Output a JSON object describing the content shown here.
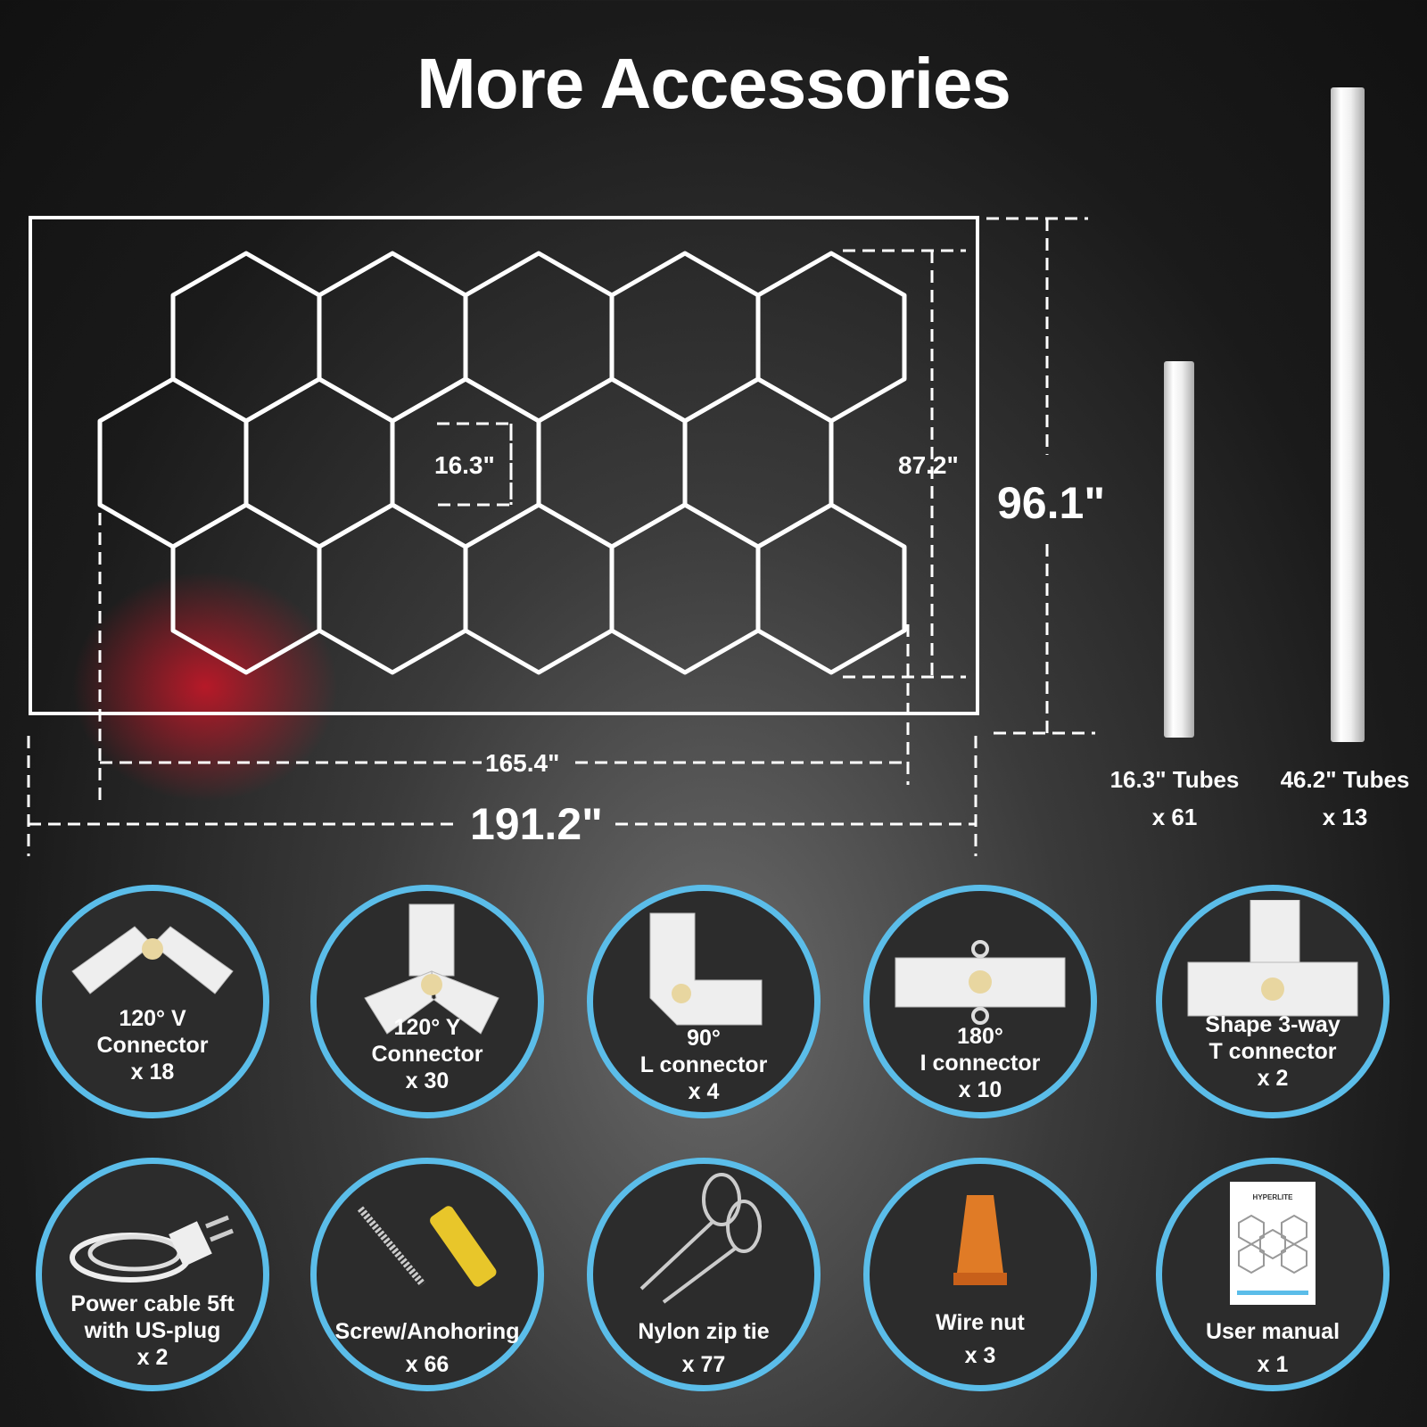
{
  "title": "More Accessories",
  "dimensions": {
    "hex_side": "16.3\"",
    "panel_height": "87.2\"",
    "frame_height": "96.1\"",
    "panel_width": "165.4\"",
    "frame_width": "191.2\""
  },
  "hex_rows": [
    5,
    5,
    5
  ],
  "tubes": [
    {
      "label": "16.3\" Tubes",
      "qty": "x 61"
    },
    {
      "label": "46.2\" Tubes",
      "qty": "x 13"
    }
  ],
  "accessories": [
    {
      "lines": [
        "120° V",
        "Connector",
        "x 18"
      ],
      "icon": "v-connector-icon"
    },
    {
      "lines": [
        "120° Y",
        "Connector",
        "x 30"
      ],
      "icon": "y-connector-icon"
    },
    {
      "lines": [
        "90°",
        "L connector",
        "x 4"
      ],
      "icon": "l-connector-icon"
    },
    {
      "lines": [
        "180°",
        "I connector",
        "x 10"
      ],
      "icon": "i-connector-icon"
    },
    {
      "lines": [
        "Shape 3-way",
        "T connector",
        "x 2"
      ],
      "icon": "t-connector-icon"
    },
    {
      "lines": [
        "Power cable 5ft",
        "with US-plug",
        "x 2"
      ],
      "icon": "power-cable-icon"
    },
    {
      "lines": [
        "Screw/Anohoring",
        "x 66"
      ],
      "icon": "screw-anchor-icon"
    },
    {
      "lines": [
        "Nylon zip tie",
        "x 77"
      ],
      "icon": "zip-tie-icon"
    },
    {
      "lines": [
        "Wire nut",
        "x 3"
      ],
      "icon": "wire-nut-icon"
    },
    {
      "lines": [
        "User manual",
        "x 1"
      ],
      "icon": "user-manual-icon"
    }
  ],
  "manual_brand": "HYPERLITE",
  "colors": {
    "ring": "#5bbde9",
    "glow": "#e01428"
  }
}
